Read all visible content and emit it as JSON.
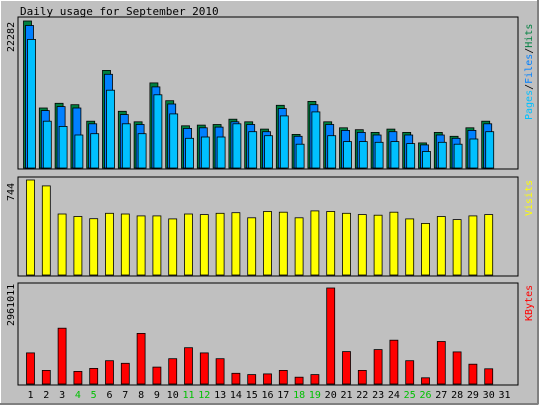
{
  "chart_data": {
    "type": "bar",
    "title": "Daily usage for September 2010",
    "categories": [
      "1",
      "2",
      "3",
      "4",
      "5",
      "6",
      "7",
      "8",
      "9",
      "10",
      "11",
      "12",
      "13",
      "14",
      "15",
      "16",
      "17",
      "18",
      "19",
      "20",
      "21",
      "22",
      "23",
      "24",
      "25",
      "26",
      "27",
      "28",
      "29",
      "30",
      "31"
    ],
    "weekend_days": [
      "4",
      "5",
      "11",
      "12",
      "18",
      "19",
      "25",
      "26"
    ],
    "panels": {
      "hits_files_pages": {
        "ylabel_parts": [
          "Pages",
          "/",
          "Files",
          "/",
          "Hits"
        ],
        "ymax_label": "22282",
        "ymax": 22282,
        "series": [
          {
            "name": "Hits",
            "color": "#008040",
            "values": [
              22282,
              9100,
              9800,
              9600,
              7100,
              14800,
              8600,
              7000,
              12900,
              10200,
              6400,
              6500,
              6600,
              7400,
              7000,
              5900,
              9500,
              5100,
              10100,
              7000,
              6100,
              5800,
              5400,
              5900,
              5400,
              3800,
              5400,
              4800,
              6100,
              7100,
              0
            ]
          },
          {
            "name": "Files",
            "color": "#0080ff",
            "values": [
              21600,
              8700,
              9300,
              9100,
              6700,
              14200,
              8100,
              6600,
              12300,
              9700,
              6000,
              6100,
              6200,
              7000,
              6600,
              5500,
              9000,
              4800,
              9600,
              6600,
              5700,
              5400,
              5000,
              5500,
              5000,
              3500,
              5000,
              4500,
              5700,
              6700,
              0
            ]
          },
          {
            "name": "Pages",
            "color": "#00c0ff",
            "values": [
              19500,
              7100,
              6300,
              5000,
              5200,
              11800,
              6700,
              5200,
              11100,
              8200,
              4500,
              4700,
              4700,
              6700,
              5500,
              4900,
              7900,
              3600,
              8500,
              4900,
              4000,
              4000,
              3900,
              4000,
              3700,
              2500,
              3900,
              3600,
              4400,
              5500,
              0
            ]
          }
        ]
      },
      "visits": {
        "ylabel": "Visits",
        "ymax_label": "744",
        "ymax": 744,
        "series": [
          {
            "name": "Visits",
            "color": "#ffff00",
            "values": [
              744,
              698,
              478,
              458,
              441,
              483,
              478,
              463,
              463,
              439,
              478,
              473,
              483,
              488,
              448,
              497,
              492,
              448,
              502,
              497,
              483,
              473,
              468,
              492,
              439,
              404,
              458,
              434,
              463,
              473,
              0
            ]
          }
        ]
      },
      "kbytes": {
        "ylabel": "KBytes",
        "ymax_label": "2961011",
        "ymax": 2961011,
        "series": [
          {
            "name": "KBytes",
            "color": "#ff0000",
            "values": [
              960000,
              420000,
              1720000,
              390000,
              480000,
              720000,
              640000,
              1560000,
              520000,
              780000,
              1120000,
              960000,
              780000,
              330000,
              290000,
              310000,
              420000,
              210000,
              290000,
              2961011,
              1000000,
              420000,
              1060000,
              1350000,
              720000,
              190000,
              1310000,
              990000,
              610000,
              470000,
              0
            ]
          }
        ]
      }
    }
  }
}
